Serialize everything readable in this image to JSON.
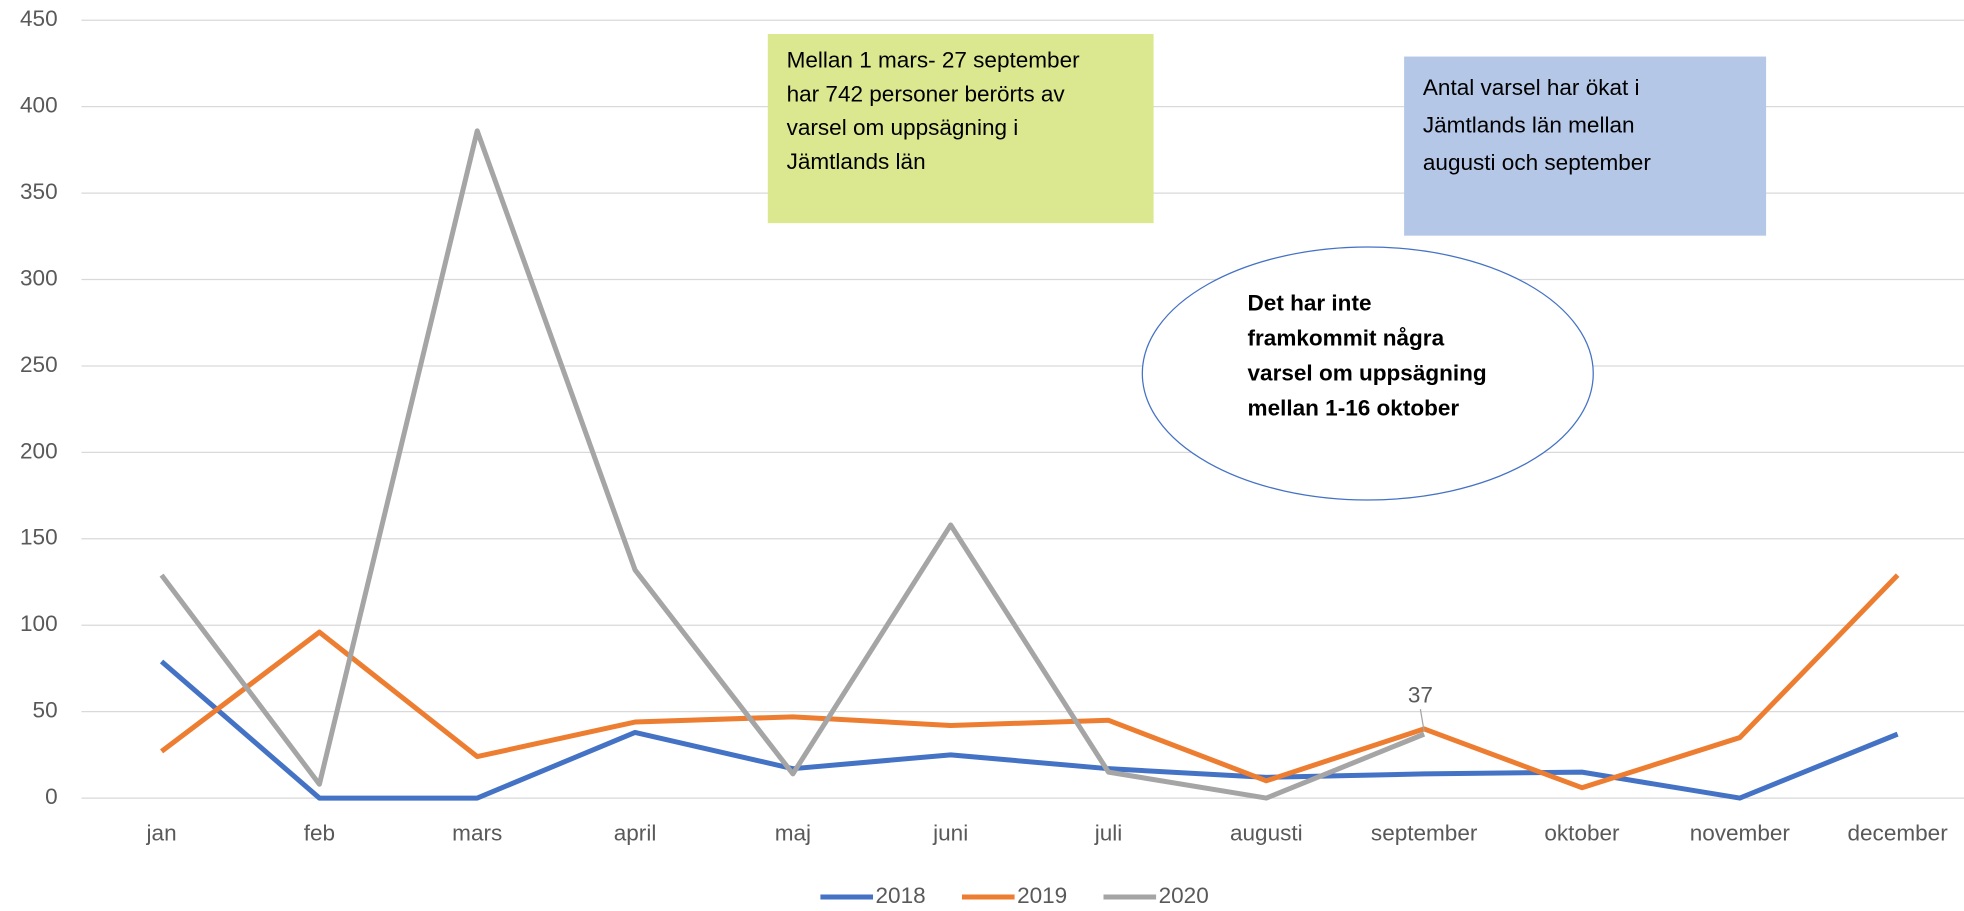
{
  "chart_data": {
    "type": "line",
    "categories": [
      "jan",
      "feb",
      "mars",
      "april",
      "maj",
      "juni",
      "juli",
      "augusti",
      "september",
      "oktober",
      "november",
      "december"
    ],
    "series": [
      {
        "name": "2018",
        "color": "#4472c4",
        "values": [
          79,
          0,
          0,
          38,
          17,
          25,
          17,
          12,
          14,
          15,
          0,
          37
        ]
      },
      {
        "name": "2019",
        "color": "#ed7d31",
        "values": [
          27,
          96,
          24,
          44,
          47,
          42,
          45,
          10,
          40,
          6,
          35,
          129
        ]
      },
      {
        "name": "2020",
        "color": "#a5a5a5",
        "values": [
          129,
          8,
          386,
          132,
          14,
          158,
          15,
          0,
          37,
          null,
          null,
          null
        ]
      }
    ],
    "ylim": [
      0,
      450
    ],
    "yticks": [
      0,
      50,
      100,
      150,
      200,
      250,
      300,
      350,
      400,
      450
    ],
    "grid": true,
    "legend": "bottom",
    "annotations": [
      {
        "lines": [
          "Mellan 1 mars- 27 september",
          "har 742 personer berörts av",
          "varsel om uppsägning i",
          "Jämtlands län"
        ]
      },
      {
        "lines": [
          "Antal varsel har ökat i",
          "Jämtlands län mellan",
          "augusti och september"
        ]
      },
      {
        "lines": [
          "Det har inte",
          "framkommit några",
          "varsel om uppsägning",
          "mellan 1-16 oktober"
        ]
      }
    ]
  }
}
